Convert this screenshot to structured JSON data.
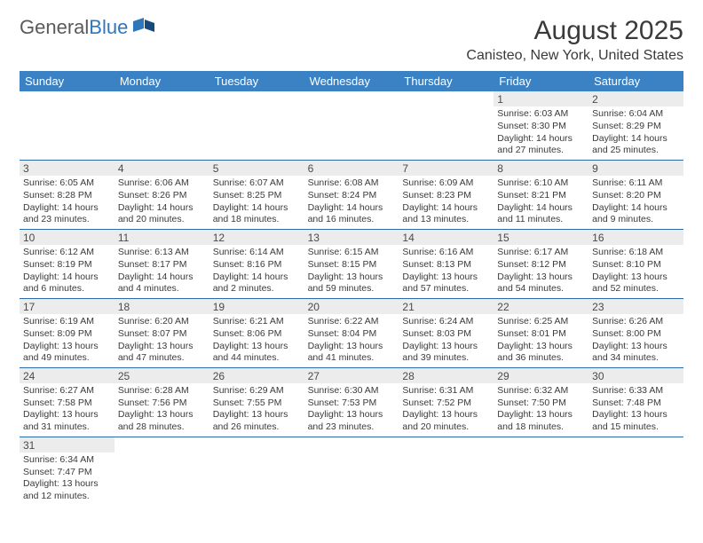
{
  "logo": {
    "text1": "General",
    "text2": "Blue"
  },
  "title": "August 2025",
  "location": "Canisteo, New York, United States",
  "header_bg": "#3a82c4",
  "daynum_bg": "#ececec",
  "row_border": "#2f6aa8",
  "weekdays": [
    "Sunday",
    "Monday",
    "Tuesday",
    "Wednesday",
    "Thursday",
    "Friday",
    "Saturday"
  ],
  "weeks": [
    [
      {
        "empty": true
      },
      {
        "empty": true
      },
      {
        "empty": true
      },
      {
        "empty": true
      },
      {
        "empty": true
      },
      {
        "day": "1",
        "sunrise": "Sunrise: 6:03 AM",
        "sunset": "Sunset: 8:30 PM",
        "daylight": "Daylight: 14 hours and 27 minutes."
      },
      {
        "day": "2",
        "sunrise": "Sunrise: 6:04 AM",
        "sunset": "Sunset: 8:29 PM",
        "daylight": "Daylight: 14 hours and 25 minutes."
      }
    ],
    [
      {
        "day": "3",
        "sunrise": "Sunrise: 6:05 AM",
        "sunset": "Sunset: 8:28 PM",
        "daylight": "Daylight: 14 hours and 23 minutes."
      },
      {
        "day": "4",
        "sunrise": "Sunrise: 6:06 AM",
        "sunset": "Sunset: 8:26 PM",
        "daylight": "Daylight: 14 hours and 20 minutes."
      },
      {
        "day": "5",
        "sunrise": "Sunrise: 6:07 AM",
        "sunset": "Sunset: 8:25 PM",
        "daylight": "Daylight: 14 hours and 18 minutes."
      },
      {
        "day": "6",
        "sunrise": "Sunrise: 6:08 AM",
        "sunset": "Sunset: 8:24 PM",
        "daylight": "Daylight: 14 hours and 16 minutes."
      },
      {
        "day": "7",
        "sunrise": "Sunrise: 6:09 AM",
        "sunset": "Sunset: 8:23 PM",
        "daylight": "Daylight: 14 hours and 13 minutes."
      },
      {
        "day": "8",
        "sunrise": "Sunrise: 6:10 AM",
        "sunset": "Sunset: 8:21 PM",
        "daylight": "Daylight: 14 hours and 11 minutes."
      },
      {
        "day": "9",
        "sunrise": "Sunrise: 6:11 AM",
        "sunset": "Sunset: 8:20 PM",
        "daylight": "Daylight: 14 hours and 9 minutes."
      }
    ],
    [
      {
        "day": "10",
        "sunrise": "Sunrise: 6:12 AM",
        "sunset": "Sunset: 8:19 PM",
        "daylight": "Daylight: 14 hours and 6 minutes."
      },
      {
        "day": "11",
        "sunrise": "Sunrise: 6:13 AM",
        "sunset": "Sunset: 8:17 PM",
        "daylight": "Daylight: 14 hours and 4 minutes."
      },
      {
        "day": "12",
        "sunrise": "Sunrise: 6:14 AM",
        "sunset": "Sunset: 8:16 PM",
        "daylight": "Daylight: 14 hours and 2 minutes."
      },
      {
        "day": "13",
        "sunrise": "Sunrise: 6:15 AM",
        "sunset": "Sunset: 8:15 PM",
        "daylight": "Daylight: 13 hours and 59 minutes."
      },
      {
        "day": "14",
        "sunrise": "Sunrise: 6:16 AM",
        "sunset": "Sunset: 8:13 PM",
        "daylight": "Daylight: 13 hours and 57 minutes."
      },
      {
        "day": "15",
        "sunrise": "Sunrise: 6:17 AM",
        "sunset": "Sunset: 8:12 PM",
        "daylight": "Daylight: 13 hours and 54 minutes."
      },
      {
        "day": "16",
        "sunrise": "Sunrise: 6:18 AM",
        "sunset": "Sunset: 8:10 PM",
        "daylight": "Daylight: 13 hours and 52 minutes."
      }
    ],
    [
      {
        "day": "17",
        "sunrise": "Sunrise: 6:19 AM",
        "sunset": "Sunset: 8:09 PM",
        "daylight": "Daylight: 13 hours and 49 minutes."
      },
      {
        "day": "18",
        "sunrise": "Sunrise: 6:20 AM",
        "sunset": "Sunset: 8:07 PM",
        "daylight": "Daylight: 13 hours and 47 minutes."
      },
      {
        "day": "19",
        "sunrise": "Sunrise: 6:21 AM",
        "sunset": "Sunset: 8:06 PM",
        "daylight": "Daylight: 13 hours and 44 minutes."
      },
      {
        "day": "20",
        "sunrise": "Sunrise: 6:22 AM",
        "sunset": "Sunset: 8:04 PM",
        "daylight": "Daylight: 13 hours and 41 minutes."
      },
      {
        "day": "21",
        "sunrise": "Sunrise: 6:24 AM",
        "sunset": "Sunset: 8:03 PM",
        "daylight": "Daylight: 13 hours and 39 minutes."
      },
      {
        "day": "22",
        "sunrise": "Sunrise: 6:25 AM",
        "sunset": "Sunset: 8:01 PM",
        "daylight": "Daylight: 13 hours and 36 minutes."
      },
      {
        "day": "23",
        "sunrise": "Sunrise: 6:26 AM",
        "sunset": "Sunset: 8:00 PM",
        "daylight": "Daylight: 13 hours and 34 minutes."
      }
    ],
    [
      {
        "day": "24",
        "sunrise": "Sunrise: 6:27 AM",
        "sunset": "Sunset: 7:58 PM",
        "daylight": "Daylight: 13 hours and 31 minutes."
      },
      {
        "day": "25",
        "sunrise": "Sunrise: 6:28 AM",
        "sunset": "Sunset: 7:56 PM",
        "daylight": "Daylight: 13 hours and 28 minutes."
      },
      {
        "day": "26",
        "sunrise": "Sunrise: 6:29 AM",
        "sunset": "Sunset: 7:55 PM",
        "daylight": "Daylight: 13 hours and 26 minutes."
      },
      {
        "day": "27",
        "sunrise": "Sunrise: 6:30 AM",
        "sunset": "Sunset: 7:53 PM",
        "daylight": "Daylight: 13 hours and 23 minutes."
      },
      {
        "day": "28",
        "sunrise": "Sunrise: 6:31 AM",
        "sunset": "Sunset: 7:52 PM",
        "daylight": "Daylight: 13 hours and 20 minutes."
      },
      {
        "day": "29",
        "sunrise": "Sunrise: 6:32 AM",
        "sunset": "Sunset: 7:50 PM",
        "daylight": "Daylight: 13 hours and 18 minutes."
      },
      {
        "day": "30",
        "sunrise": "Sunrise: 6:33 AM",
        "sunset": "Sunset: 7:48 PM",
        "daylight": "Daylight: 13 hours and 15 minutes."
      }
    ],
    [
      {
        "day": "31",
        "sunrise": "Sunrise: 6:34 AM",
        "sunset": "Sunset: 7:47 PM",
        "daylight": "Daylight: 13 hours and 12 minutes."
      },
      {
        "empty": true
      },
      {
        "empty": true
      },
      {
        "empty": true
      },
      {
        "empty": true
      },
      {
        "empty": true
      },
      {
        "empty": true
      }
    ]
  ]
}
